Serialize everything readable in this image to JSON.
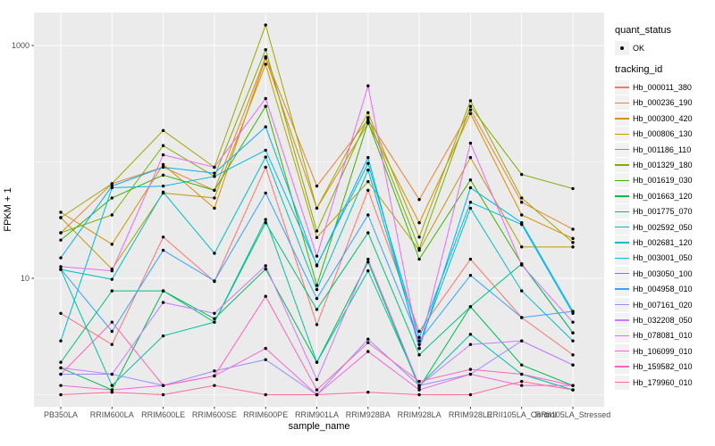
{
  "colors": {
    "panel_bg": "#EBEBEB",
    "grid": "#FFFFFF",
    "tick_text": "#4D4D4D",
    "tick_mark": "#333333",
    "point": "#000000"
  },
  "legend": {
    "quant_status_title": "quant_status",
    "quant_status_items": [
      {
        "label": "OK"
      }
    ],
    "tracking_id_title": "tracking_id"
  },
  "chart_data": {
    "type": "line",
    "title": "",
    "xlabel": "sample_name",
    "ylabel": "FPKM + 1",
    "grid": true,
    "legend_position": "right",
    "y_axis": {
      "scale": "log10",
      "ticks": [
        10,
        1000
      ],
      "tick_labels": [
        "10",
        "1000"
      ],
      "minor_gridlines": [
        1,
        100
      ],
      "range": [
        0.9,
        1900
      ]
    },
    "categories": [
      "PB350LA",
      "RRIM600LA",
      "RRIM600LE",
      "RRIM600SE",
      "RRIM600PE",
      "RRIM901LA",
      "RRIM928BA",
      "RRIM928LA",
      "RRIM928LE",
      "RRII105LA_Control",
      "RRII105LA_Stressed"
    ],
    "point_color": "#000000",
    "series": [
      {
        "name": "Hb_000011_380",
        "color": "#F8766D",
        "values": [
          5.0,
          2.7,
          22.6,
          9.4,
          90,
          4.0,
          57,
          3.5,
          14.6,
          4.6,
          2.2
        ]
      },
      {
        "name": "Hb_000236_190",
        "color": "#EA8331",
        "values": [
          24.6,
          65,
          90,
          57,
          800,
          62,
          230,
          47.5,
          280,
          45,
          26.4
        ]
      },
      {
        "name": "Hb_000300_420",
        "color": "#D89000",
        "values": [
          36.9,
          19.6,
          95,
          40,
          780,
          40,
          215,
          30,
          260,
          35,
          22
        ]
      },
      {
        "name": "Hb_000806_130",
        "color": "#C09B00",
        "values": [
          33.2,
          12,
          54,
          49,
          690,
          22.4,
          67.7,
          17.4,
          109,
          18.6,
          18.6
        ]
      },
      {
        "name": "Hb_001186_110",
        "color": "#A3A500",
        "values": [
          33.2,
          65,
          186,
          90,
          1500,
          40,
          265,
          22.6,
          335,
          49,
          20.3
        ]
      },
      {
        "name": "Hb_001329_180",
        "color": "#7CAE00",
        "values": [
          24.6,
          35,
          138,
          75,
          920,
          25.5,
          240,
          18,
          300,
          78,
          59
        ]
      },
      {
        "name": "Hb_001619_030",
        "color": "#39B600",
        "values": [
          21.3,
          49,
          77,
          57,
          300,
          8.7,
          220,
          14.6,
          70,
          13.3,
          3.4
        ]
      },
      {
        "name": "Hb_001663_120",
        "color": "#00BB4E",
        "values": [
          1.7,
          1.1,
          7.8,
          4.5,
          12,
          1.9,
          13.8,
          1.15,
          5.7,
          1.8,
          1.2
        ]
      },
      {
        "name": "Hb_001775_070",
        "color": "#00BF7D",
        "values": [
          1.9,
          7.8,
          7.8,
          4.2,
          30,
          5.4,
          24.6,
          2.2,
          5.7,
          13.3,
          3.4
        ]
      },
      {
        "name": "Hb_002592_050",
        "color": "#00C1A3",
        "values": [
          11.9,
          1.2,
          3.2,
          4.2,
          32,
          1.9,
          11.6,
          1.2,
          3.3,
          1.5,
          1.1
        ]
      },
      {
        "name": "Hb_002681_120",
        "color": "#00BFC4",
        "values": [
          11.9,
          9.8,
          55,
          16.4,
          110,
          8.0,
          85,
          2.7,
          40,
          7.8,
          2.9
        ]
      },
      {
        "name": "Hb_003001_050",
        "color": "#00BADE",
        "values": [
          2.9,
          60,
          62,
          75,
          126,
          13,
          97,
          3.1,
          45,
          29,
          5.0
        ]
      },
      {
        "name": "Hb_003050_100",
        "color": "#00B0F6",
        "values": [
          15,
          62,
          90,
          80,
          200,
          12.8,
          109,
          2.5,
          60,
          30,
          5.2
        ]
      },
      {
        "name": "Hb_004958_010",
        "color": "#35A2FF",
        "values": [
          12,
          3.5,
          17.4,
          9.5,
          54,
          6.7,
          35,
          2.9,
          10.6,
          4.6,
          5.2
        ]
      },
      {
        "name": "Hb_007161_020",
        "color": "#9590FF",
        "values": [
          1.5,
          1.5,
          1.2,
          1.6,
          2.0,
          1.0,
          3.0,
          1.2,
          1.5,
          2.9,
          1.8
        ]
      },
      {
        "name": "Hb_032208_050",
        "color": "#C77CFF",
        "values": [
          1.7,
          1.5,
          6.2,
          5.0,
          12.8,
          1.35,
          14.6,
          1.2,
          2.7,
          2.9,
          1.8
        ]
      },
      {
        "name": "Hb_078081_010",
        "color": "#E76BF3",
        "values": [
          12.6,
          11.6,
          115,
          90,
          350,
          15.5,
          450,
          2.5,
          145,
          13,
          4.2
        ]
      },
      {
        "name": "Hb_106099_010",
        "color": "#FA62DB",
        "values": [
          1.2,
          1.1,
          1.2,
          1.45,
          2.5,
          1.0,
          2.35,
          1.1,
          1.5,
          1.2,
          1.2
        ]
      },
      {
        "name": "Hb_159582_010",
        "color": "#FF62BC",
        "values": [
          1.5,
          4.2,
          1.2,
          1.45,
          7.0,
          1.1,
          2.8,
          1.3,
          1.65,
          1.5,
          1.2
        ]
      },
      {
        "name": "Hb_179960_010",
        "color": "#FF6A98",
        "values": [
          1.0,
          1.05,
          1.0,
          1.2,
          1.0,
          1.0,
          1.05,
          1.0,
          1.0,
          1.3,
          1.1
        ]
      }
    ]
  }
}
